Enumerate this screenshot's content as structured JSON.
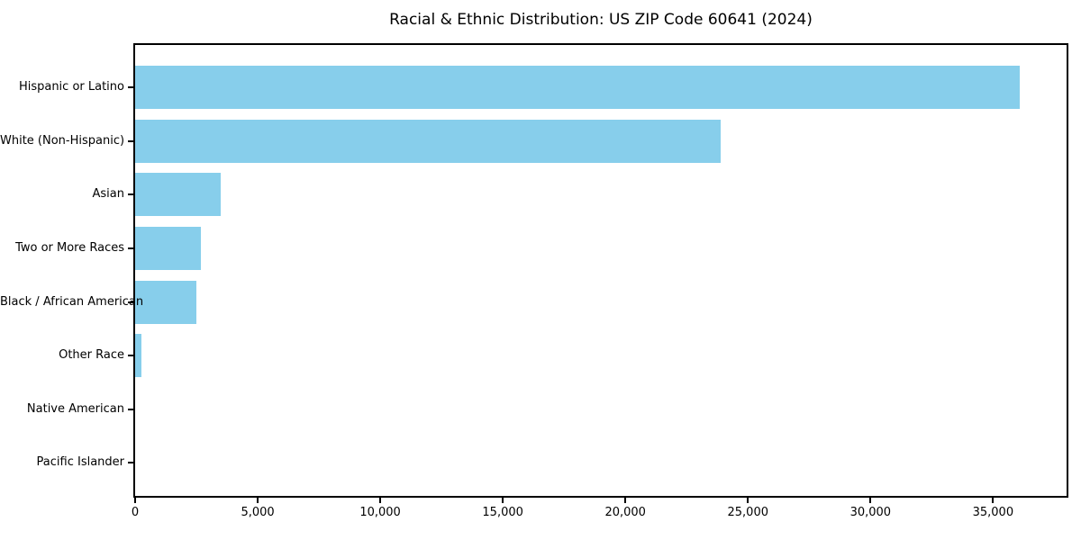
{
  "title": "Racial & Ethnic Distribution: US ZIP Code 60641 (2024)",
  "colors": {
    "bar": "#87CEEB",
    "text": "#000000",
    "spine": "#000000",
    "background": "#ffffff"
  },
  "chart_data": {
    "type": "bar",
    "orientation": "horizontal",
    "title": "Racial & Ethnic Distribution: US ZIP Code 60641 (2024)",
    "categories": [
      "Hispanic or Latino",
      "White (Non-Hispanic)",
      "Asian",
      "Two or More Races",
      "Black / African American",
      "Other Race",
      "Native American",
      "Pacific Islander"
    ],
    "values": [
      36100,
      23900,
      3500,
      2700,
      2500,
      250,
      0,
      0
    ],
    "xlabel": "",
    "ylabel": "",
    "xlim": [
      0,
      38000
    ],
    "xticks": [
      0,
      5000,
      10000,
      15000,
      20000,
      25000,
      30000,
      35000
    ],
    "xtick_labels": [
      "0",
      "5,000",
      "10,000",
      "15,000",
      "20,000",
      "25,000",
      "30,000",
      "35,000"
    ],
    "bar_color": "#87CEEB",
    "grid": false,
    "legend": false
  }
}
